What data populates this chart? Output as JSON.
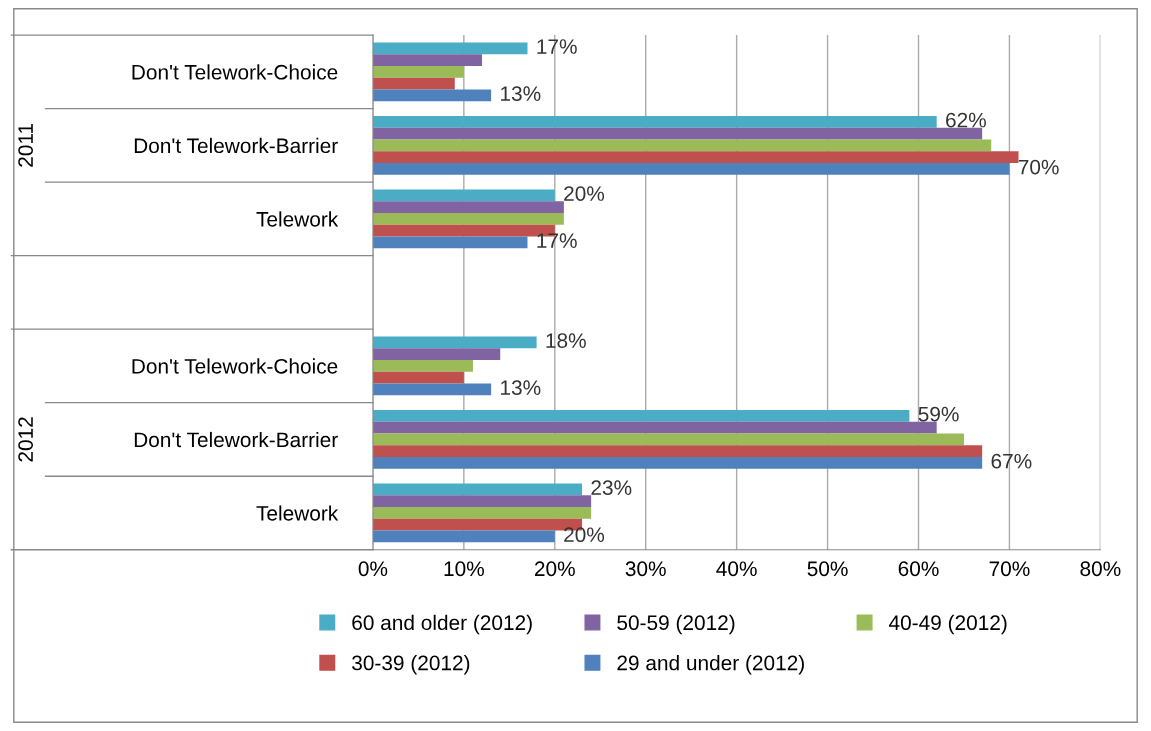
{
  "chart_data": {
    "type": "bar",
    "orientation": "horizontal",
    "categories": [
      "Don't Telework-Choice",
      "Don't Telework-Barrier",
      "Telework",
      null,
      "Don't Telework-Choice",
      "Don't Telework-Barrier",
      "Telework"
    ],
    "series": [
      {
        "name": "60 and older (2012)",
        "color": "#4bacc6",
        "values": [
          17,
          62,
          20,
          null,
          18,
          59,
          23
        ],
        "value_labels": [
          "17%",
          "62%",
          "20%",
          null,
          "18%",
          "59%",
          "23%"
        ]
      },
      {
        "name": "50-59 (2012)",
        "color": "#8064a2",
        "values": [
          12,
          67,
          21,
          null,
          14,
          62,
          24
        ]
      },
      {
        "name": "40-49 (2012)",
        "color": "#9bbb59",
        "values": [
          10,
          68,
          21,
          null,
          11,
          65,
          24
        ]
      },
      {
        "name": "30-39 (2012)",
        "color": "#c0504d",
        "values": [
          9,
          71,
          20,
          null,
          10,
          67,
          23
        ]
      },
      {
        "name": "29 and under (2012)",
        "color": "#4f81bd",
        "values": [
          13,
          70,
          17,
          null,
          13,
          67,
          20
        ],
        "value_labels": [
          "13%",
          "70%",
          "17%",
          null,
          "13%",
          "67%",
          "20%"
        ]
      }
    ],
    "xlim": [
      0,
      80
    ],
    "xticks": [
      {
        "value": 0,
        "label": "0%"
      },
      {
        "value": 10,
        "label": "10%"
      },
      {
        "value": 20,
        "label": "20%"
      },
      {
        "value": 30,
        "label": "30%"
      },
      {
        "value": 40,
        "label": "40%"
      },
      {
        "value": 50,
        "label": "50%"
      },
      {
        "value": 60,
        "label": "60%"
      },
      {
        "value": 70,
        "label": "70%"
      },
      {
        "value": 80,
        "label": "80%"
      }
    ],
    "annotations": [
      "2011",
      "2012"
    ],
    "grid": "x",
    "legend": "bottom"
  }
}
